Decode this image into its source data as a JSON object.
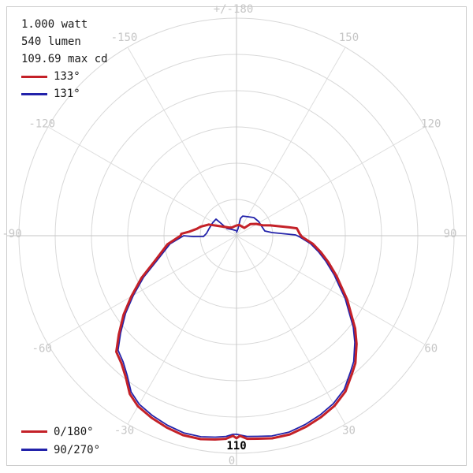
{
  "header": {
    "line1": "1.000 watt",
    "line2": "540 lumen",
    "line3": "109.69 max cd"
  },
  "beam_angle_legend": [
    {
      "label": "133°",
      "series": "0/180°",
      "color_key": "series_0_180"
    },
    {
      "label": "131°",
      "series": "90/270°",
      "color_key": "series_90_270"
    }
  ],
  "plane_legend": [
    {
      "label": "0/180°",
      "color_key": "series_0_180"
    },
    {
      "label": "90/270°",
      "color_key": "series_90_270"
    }
  ],
  "scale_label": {
    "text": "110"
  },
  "colors": {
    "series_0_180": "#c42128",
    "series_90_270": "#2222aa",
    "grid": "#d8d8d8",
    "spoke": "#dedede",
    "axis": "#c6c6c6",
    "angle_label": "#c6c6c6",
    "text": "#1a1a1a",
    "border": "#cccccc"
  },
  "chart_data": {
    "type": "line",
    "polar": true,
    "angle_convention": "degrees from nadir (0 = straight down); negative = left side",
    "radial_axis": {
      "unit": "cd",
      "outer_ring_cd": 110,
      "num_rings": 6,
      "outer_ring_label": "110"
    },
    "legend_position": "top-left and bottom-left",
    "angle_labels": [
      {
        "angle": 180,
        "text": "+/-180"
      },
      {
        "angle": -150,
        "text": "-150"
      },
      {
        "angle": 150,
        "text": "150"
      },
      {
        "angle": -120,
        "text": "-120"
      },
      {
        "angle": 120,
        "text": "120"
      },
      {
        "angle": -90,
        "text": "-90"
      },
      {
        "angle": 90,
        "text": "90"
      },
      {
        "angle": -60,
        "text": "-60"
      },
      {
        "angle": 60,
        "text": "60"
      },
      {
        "angle": -30,
        "text": "-30"
      },
      {
        "angle": 30,
        "text": "30"
      },
      {
        "angle": 0,
        "text": "0"
      }
    ],
    "series": [
      {
        "name": "0/180°",
        "beam_angle": "133°",
        "color_key": "series_0_180",
        "stroke_width": 3,
        "points_deg_cd": [
          [
            -180,
            5.2
          ],
          [
            -165,
            4.8
          ],
          [
            -150,
            4.8
          ],
          [
            -138,
            5.6
          ],
          [
            -128,
            7.2
          ],
          [
            -121,
            9.2
          ],
          [
            -112,
            15.1
          ],
          [
            -104,
            18.7
          ],
          [
            -100,
            20.3
          ],
          [
            -95,
            23.9
          ],
          [
            -92,
            27.9
          ],
          [
            -90,
            28.3
          ],
          [
            -83,
            35.1
          ],
          [
            -73,
            43.0
          ],
          [
            -66,
            52.6
          ],
          [
            -60,
            61.4
          ],
          [
            -55,
            69.7
          ],
          [
            -50,
            77.7
          ],
          [
            -46,
            84.5
          ],
          [
            -42,
            86.9
          ],
          [
            -38,
            90.9
          ],
          [
            -34,
            96.5
          ],
          [
            -30,
            99.6
          ],
          [
            -25,
            101.6
          ],
          [
            -20,
            103.2
          ],
          [
            -15,
            104.4
          ],
          [
            -10,
            104.4
          ],
          [
            -6,
            103.6
          ],
          [
            -3,
            102.8
          ],
          [
            -1,
            101.2
          ],
          [
            0,
            102.4
          ],
          [
            1,
            101.2
          ],
          [
            3,
            102.8
          ],
          [
            6,
            103.2
          ],
          [
            10,
            104.0
          ],
          [
            15,
            104.0
          ],
          [
            20,
            102.8
          ],
          [
            25,
            101.2
          ],
          [
            30,
            99.2
          ],
          [
            35,
            96.1
          ],
          [
            40,
            90.9
          ],
          [
            43,
            88.1
          ],
          [
            48,
            81.7
          ],
          [
            52,
            76.1
          ],
          [
            56,
            69.7
          ],
          [
            60,
            64.6
          ],
          [
            64,
            59.0
          ],
          [
            68,
            54.6
          ],
          [
            74,
            48.2
          ],
          [
            79,
            43.4
          ],
          [
            84,
            38.7
          ],
          [
            89,
            33.1
          ],
          [
            92,
            31.9
          ],
          [
            97,
            30.7
          ],
          [
            99,
            27.1
          ],
          [
            103,
            21.5
          ],
          [
            107,
            17.9
          ],
          [
            112,
            14.1
          ],
          [
            121,
            11.6
          ],
          [
            130,
            9.2
          ],
          [
            135,
            5.6
          ],
          [
            150,
            5.4
          ],
          [
            165,
            5.6
          ],
          [
            180,
            5.2
          ]
        ]
      },
      {
        "name": "90/270°",
        "beam_angle": "131°",
        "color_key": "series_90_270",
        "stroke_width": 1.8,
        "points_deg_cd": [
          [
            -178,
            2.5
          ],
          [
            -160,
            3.0
          ],
          [
            -140,
            4.2
          ],
          [
            -127,
            6.0
          ],
          [
            -128.7,
            10.2
          ],
          [
            -128.9,
            13.3
          ],
          [
            -119.5,
            13.7
          ],
          [
            -104.4,
            14.3
          ],
          [
            -94.5,
            15.2
          ],
          [
            -88.6,
            16.7
          ],
          [
            -88.9,
            21.9
          ],
          [
            -90,
            26.7
          ],
          [
            -83,
            33.9
          ],
          [
            -73,
            41.8
          ],
          [
            -66,
            51.4
          ],
          [
            -60,
            60.2
          ],
          [
            -55,
            68.5
          ],
          [
            -50,
            76.5
          ],
          [
            -46,
            83.3
          ],
          [
            -42,
            85.7
          ],
          [
            -38,
            89.7
          ],
          [
            -34,
            95.3
          ],
          [
            -30,
            98.4
          ],
          [
            -25,
            100.4
          ],
          [
            -20,
            102.0
          ],
          [
            -15,
            103.2
          ],
          [
            -10,
            103.2
          ],
          [
            -6,
            102.4
          ],
          [
            -3,
            101.6
          ],
          [
            -1,
            100.4
          ],
          [
            0,
            100.4
          ],
          [
            3,
            101.6
          ],
          [
            6,
            102.0
          ],
          [
            10,
            102.8
          ],
          [
            15,
            102.8
          ],
          [
            20,
            101.6
          ],
          [
            25,
            100.0
          ],
          [
            30,
            98.0
          ],
          [
            35,
            94.9
          ],
          [
            40,
            89.7
          ],
          [
            43,
            86.9
          ],
          [
            48,
            80.5
          ],
          [
            52,
            74.9
          ],
          [
            56,
            68.5
          ],
          [
            60,
            63.4
          ],
          [
            64,
            57.8
          ],
          [
            68,
            53.4
          ],
          [
            74,
            47.0
          ],
          [
            79,
            42.2
          ],
          [
            84,
            37.5
          ],
          [
            89,
            31.9
          ],
          [
            90.8,
            29.9
          ],
          [
            93.1,
            22.0
          ],
          [
            95.1,
            18.0
          ],
          [
            99.5,
            14.5
          ],
          [
            110.6,
            13.6
          ],
          [
            122.7,
            13.3
          ],
          [
            136.3,
            12.7
          ],
          [
            148,
            11.3
          ],
          [
            162.3,
            10.4
          ],
          [
            167.2,
            9.0
          ],
          [
            167.5,
            3.7
          ],
          [
            175,
            2.0
          ],
          [
            180,
            1.5
          ]
        ]
      }
    ]
  }
}
